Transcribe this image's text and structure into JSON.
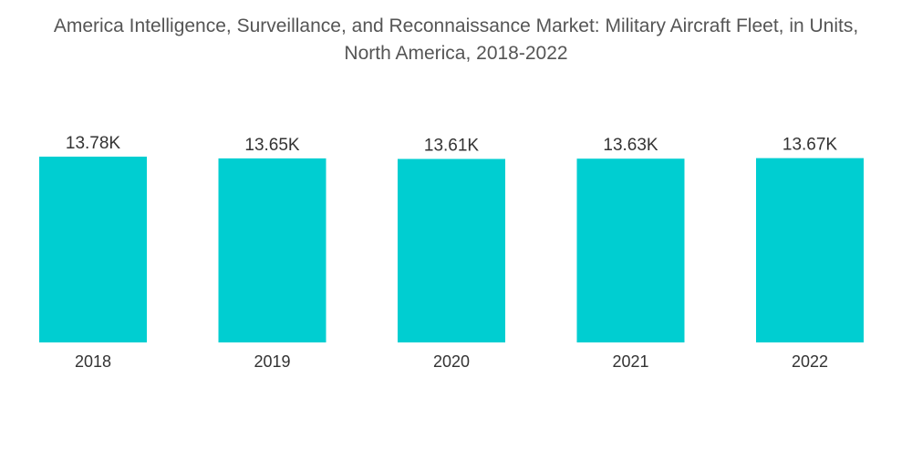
{
  "chart_data": {
    "type": "bar",
    "title": "America Intelligence, Surveillance, and Reconnaissance Market: Military Aircraft Fleet, in Units, North America, 2018-2022",
    "categories": [
      "2018",
      "2019",
      "2020",
      "2021",
      "2022"
    ],
    "values": [
      13.78,
      13.65,
      13.61,
      13.63,
      13.67
    ],
    "value_labels": [
      "13.78K",
      "13.65K",
      "13.61K",
      "13.63K",
      "13.67K"
    ],
    "unit": "K units",
    "xlabel": "",
    "ylabel": "",
    "ylim": [
      0,
      13.78
    ],
    "grid": false,
    "legend": "none",
    "bar_color": "#00CED1"
  }
}
